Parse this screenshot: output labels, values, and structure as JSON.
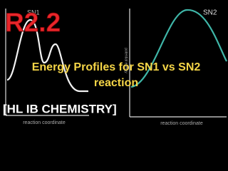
{
  "badge": "R2.2",
  "headline": [
    "Energy Profiles for SN1 vs SN2",
    "reaction"
  ],
  "tag": "[HL IB CHEMISTRY]",
  "left_graph": {
    "label": "SN1",
    "x_axis": "reaction coordinate"
  },
  "right_graph": {
    "label": "SN2",
    "x_axis": "reaction coordinate",
    "y_axis": "potential energy"
  }
}
